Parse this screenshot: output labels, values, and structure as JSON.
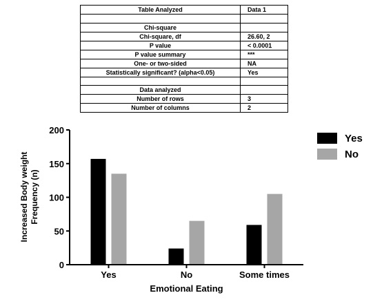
{
  "table": {
    "rows": [
      {
        "label": "Table Analyzed",
        "value": "Data 1"
      },
      {
        "label": "",
        "value": ""
      },
      {
        "label": "Chi-square",
        "value": ""
      },
      {
        "label": "Chi-square, df",
        "value": "26.60, 2"
      },
      {
        "label": "P value",
        "value": "< 0.0001"
      },
      {
        "label": "P value summary",
        "value": "***"
      },
      {
        "label": "One- or two-sided",
        "value": "NA"
      },
      {
        "label": "Statistically significant? (alpha<0.05)",
        "value": "Yes"
      },
      {
        "label": "",
        "value": ""
      },
      {
        "label": "Data analyzed",
        "value": ""
      },
      {
        "label": "Number of rows",
        "value": "3"
      },
      {
        "label": "Number of columns",
        "value": "2"
      }
    ]
  },
  "chart_data": {
    "type": "bar",
    "categories": [
      "Yes",
      "No",
      "Some times"
    ],
    "series": [
      {
        "name": "Yes",
        "values": [
          157,
          24,
          59
        ],
        "color": "#000000"
      },
      {
        "name": "No",
        "values": [
          135,
          65,
          105
        ],
        "color": "#a6a6a6"
      }
    ],
    "xlabel": "Emotional Eating",
    "ylabel": [
      "Increased Body weight",
      "Frequency (n)"
    ],
    "ylim": [
      0,
      200
    ],
    "yticks": [
      0,
      50,
      100,
      150,
      200
    ],
    "legend_position": "top-right",
    "grid": false
  }
}
